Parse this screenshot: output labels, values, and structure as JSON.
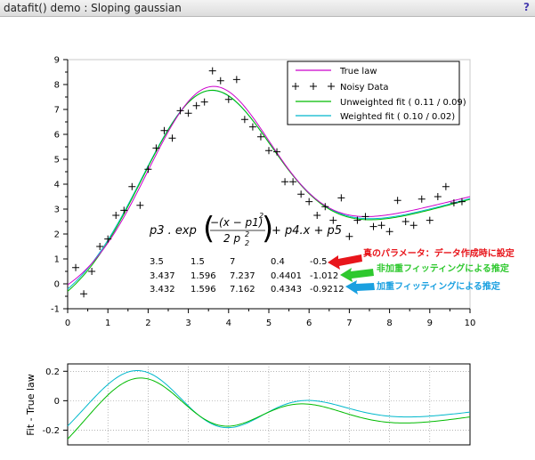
{
  "window": {
    "title": "datafit() demo : Sloping gaussian",
    "help_glyph": "?"
  },
  "colors": {
    "true_law": "#cc00cc",
    "unweighted": "#00bb00",
    "weighted": "#00b8cc",
    "noisy": "#000000",
    "arrow_red": "#e8151b",
    "arrow_green": "#2ec82e",
    "arrow_blue": "#1aa0e0"
  },
  "chart_data": [
    {
      "type": "line",
      "xlim": [
        0,
        10
      ],
      "ylim": [
        -1,
        9
      ],
      "x_ticks": [
        "0",
        "1",
        "2",
        "3",
        "4",
        "5",
        "6",
        "7",
        "8",
        "9",
        "10"
      ],
      "y_ticks": [
        "-1",
        "0",
        "1",
        "2",
        "3",
        "4",
        "5",
        "6",
        "7",
        "8",
        "9"
      ],
      "grid": false,
      "legend_position": "top-right",
      "series": [
        {
          "name": "True law",
          "kind": "line",
          "color": "#cc00cc",
          "params": [
            3.5,
            1.5,
            7,
            0.4,
            -0.5
          ]
        },
        {
          "name": "Noisy Data",
          "kind": "markers",
          "marker": "+",
          "points": [
            [
              0.2,
              0.65
            ],
            [
              0.4,
              -0.4
            ],
            [
              0.6,
              0.5
            ],
            [
              0.8,
              1.5
            ],
            [
              1.0,
              1.8
            ],
            [
              1.2,
              2.75
            ],
            [
              1.4,
              2.95
            ],
            [
              1.6,
              3.9
            ],
            [
              1.8,
              3.15
            ],
            [
              2.0,
              4.6
            ],
            [
              2.2,
              5.45
            ],
            [
              2.4,
              6.15
            ],
            [
              2.6,
              5.85
            ],
            [
              2.8,
              6.95
            ],
            [
              3.0,
              6.85
            ],
            [
              3.2,
              7.15
            ],
            [
              3.4,
              7.3
            ],
            [
              3.6,
              8.55
            ],
            [
              3.8,
              8.15
            ],
            [
              4.0,
              7.4
            ],
            [
              4.2,
              8.2
            ],
            [
              4.4,
              6.6
            ],
            [
              4.6,
              6.3
            ],
            [
              4.8,
              5.9
            ],
            [
              5.0,
              5.35
            ],
            [
              5.2,
              5.3
            ],
            [
              5.4,
              4.1
            ],
            [
              5.6,
              4.1
            ],
            [
              5.8,
              3.6
            ],
            [
              6.0,
              3.3
            ],
            [
              6.2,
              2.75
            ],
            [
              6.4,
              3.1
            ],
            [
              6.6,
              2.55
            ],
            [
              6.8,
              3.45
            ],
            [
              7.0,
              1.9
            ],
            [
              7.2,
              2.55
            ],
            [
              7.4,
              2.7
            ],
            [
              7.6,
              2.3
            ],
            [
              7.8,
              2.35
            ],
            [
              8.0,
              2.1
            ],
            [
              8.2,
              3.35
            ],
            [
              8.4,
              2.5
            ],
            [
              8.6,
              2.35
            ],
            [
              8.8,
              3.4
            ],
            [
              9.0,
              2.55
            ],
            [
              9.2,
              3.5
            ],
            [
              9.4,
              3.9
            ],
            [
              9.6,
              3.25
            ],
            [
              9.8,
              3.3
            ]
          ]
        },
        {
          "name": "Unweighted fit ( 0.11 / 0.09)",
          "kind": "line",
          "color": "#00bb00",
          "params": [
            3.437,
            1.596,
            7.237,
            0.4401,
            -1.012
          ]
        },
        {
          "name": "Weighted fit ( 0.10 / 0.02)",
          "kind": "line",
          "color": "#00b8cc",
          "params": [
            3.432,
            1.596,
            7.162,
            0.4343,
            -0.9212
          ]
        }
      ],
      "formula": {
        "p3_exp": "p3 . exp",
        "numerator": "−(x − p1)",
        "num_exp": "2",
        "denominator": "2 p",
        "den_sub": "2",
        "den_exp": "2",
        "tail": "+ p4.x + p5"
      },
      "parameter_table": [
        [
          "3.5",
          "1.5",
          "7",
          "0.4",
          "-0.5"
        ],
        [
          "3.437",
          "1.596",
          "7.237",
          "0.4401",
          "-1.012"
        ],
        [
          "3.432",
          "1.596",
          "7.162",
          "0.4343",
          "-0.9212"
        ]
      ],
      "annotations": [
        "真のパラメータ：データ作成時に設定",
        "非加重フィッティングによる推定",
        "加重フィッティングによる推定"
      ]
    },
    {
      "type": "line",
      "xlim": [
        0,
        10
      ],
      "ylim": [
        -0.3,
        0.25
      ],
      "y_ticks": [
        "0.2",
        "0",
        "-0.2"
      ],
      "ylabel": "Fit - True law",
      "grid": true
    }
  ]
}
